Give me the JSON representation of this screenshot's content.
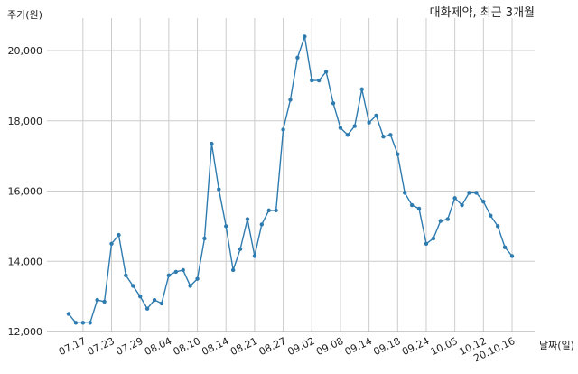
{
  "chart_data": {
    "type": "line",
    "title": "대화제약, 최근 3개월",
    "ylabel": "주가(원)",
    "xlabel": "날짜(일)",
    "ylim": [
      12000,
      20800
    ],
    "yticks": [
      12000,
      14000,
      16000,
      18000,
      20000
    ],
    "ytick_labels": [
      "12,000",
      "14,000",
      "16,000",
      "18,000",
      "20,000"
    ],
    "grid": true,
    "colors": {
      "line": "#2e7bb0",
      "grid": "#cccccc"
    },
    "xtick_labels": [
      "07.17",
      "07.23",
      "07.29",
      "08.04",
      "08.10",
      "08.14",
      "08.21",
      "08.27",
      "09.02",
      "09.08",
      "09.14",
      "09.18",
      "09.24",
      "10.05",
      "10.12",
      "20.10.16"
    ],
    "xtick_indices": [
      2,
      6,
      10,
      14,
      18,
      22,
      26,
      30,
      34,
      38,
      42,
      46,
      50,
      54,
      58,
      62
    ],
    "series": [
      {
        "values": [
          12500,
          12250,
          12250,
          12250,
          12900,
          12850,
          14500,
          14750,
          13600,
          13300,
          13000,
          12650,
          12900,
          12800,
          13600,
          13700,
          13750,
          13300,
          13500,
          14650,
          17350,
          16050,
          15000,
          13750,
          14350,
          15200,
          14150,
          15050,
          15450,
          15450,
          17750,
          18600,
          19800,
          20400,
          19150,
          19150,
          19400,
          18500,
          17800,
          17600,
          17850,
          18900,
          17950,
          18150,
          17550,
          17600,
          17050,
          15950,
          15600,
          15500,
          14500,
          14650,
          15150,
          15200,
          15800,
          15600,
          15950,
          15950,
          15700,
          15300,
          15000,
          14400,
          14150
        ]
      }
    ]
  }
}
